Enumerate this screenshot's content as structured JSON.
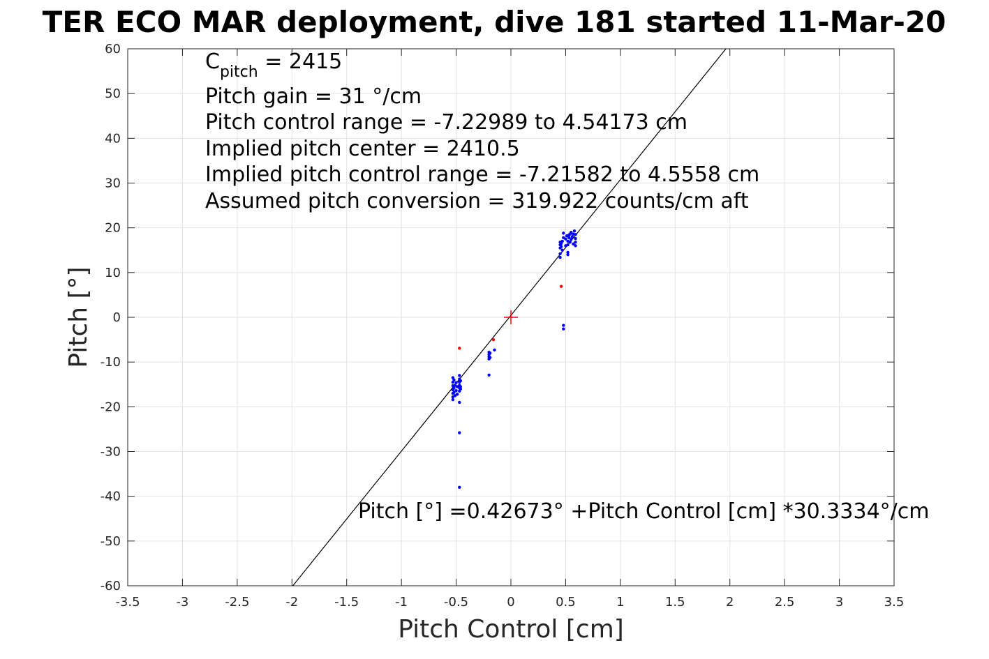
{
  "chart_data": {
    "type": "scatter",
    "title": "TER ECO MAR deployment, dive 181 started 11-Mar-20",
    "xlabel": "Pitch Control [cm]",
    "ylabel": "Pitch [°]",
    "xlim": [
      -3.5,
      3.5
    ],
    "ylim": [
      -60,
      60
    ],
    "xticks": [
      -3.5,
      -3,
      -2.5,
      -2,
      -1.5,
      -1,
      -0.5,
      0,
      0.5,
      1,
      1.5,
      2,
      2.5,
      3,
      3.5
    ],
    "yticks": [
      -60,
      -50,
      -40,
      -30,
      -20,
      -10,
      0,
      10,
      20,
      30,
      40,
      50,
      60
    ],
    "xtick_labels": [
      "-3.5",
      "-3",
      "-2.5",
      "-2",
      "-1.5",
      "-1",
      "-0.5",
      "0",
      "0.5",
      "1",
      "1.5",
      "2",
      "2.5",
      "3",
      "3.5"
    ],
    "ytick_labels": [
      "-60",
      "-50",
      "-40",
      "-30",
      "-20",
      "-10",
      "0",
      "10",
      "20",
      "30",
      "40",
      "50",
      "60"
    ],
    "grid": true,
    "annotations": {
      "c_pitch_prefix": "C",
      "c_pitch_sub": "pitch",
      "c_pitch_value": " = 2415",
      "lines": [
        "Pitch gain = 31 °/cm",
        "Pitch control range = -7.22989 to 4.54173 cm",
        "Implied pitch center = 2410.5",
        "Implied pitch control range = -7.21582 to 4.5558 cm",
        "Assumed pitch conversion = 319.922 counts/cm aft"
      ],
      "fit_equation": "Pitch [°] =0.42673° +Pitch Control [cm] *30.3334°/cm"
    },
    "fit_line": {
      "intercept": 0.42673,
      "slope": 30.3334,
      "color": "#000000"
    },
    "center_marker": {
      "x": 0,
      "y": 0,
      "color": "#ff0000"
    },
    "series": [
      {
        "color": "#0000ff",
        "points": [
          [
            -0.53,
            -13.5
          ],
          [
            -0.53,
            -14.5
          ],
          [
            -0.53,
            -15.3
          ],
          [
            -0.53,
            -16.2
          ],
          [
            -0.53,
            -17.0
          ],
          [
            -0.53,
            -17.8
          ],
          [
            -0.53,
            -18.4
          ],
          [
            -0.52,
            -14.0
          ],
          [
            -0.52,
            -15.8
          ],
          [
            -0.52,
            -16.8
          ],
          [
            -0.51,
            -15.2
          ],
          [
            -0.51,
            -17.5
          ],
          [
            -0.5,
            -14.6
          ],
          [
            -0.5,
            -16.4
          ],
          [
            -0.49,
            -15.5
          ],
          [
            -0.49,
            -17.2
          ],
          [
            -0.47,
            -13.0
          ],
          [
            -0.47,
            -13.8
          ],
          [
            -0.47,
            -14.5
          ],
          [
            -0.47,
            -15.2
          ],
          [
            -0.47,
            -15.8
          ],
          [
            -0.47,
            -16.5
          ],
          [
            -0.46,
            -14.2
          ],
          [
            -0.46,
            -15.5
          ],
          [
            -0.46,
            -16.0
          ],
          [
            -0.47,
            -19.0
          ],
          [
            -0.47,
            -25.8
          ],
          [
            -0.47,
            -38.0
          ],
          [
            -0.2,
            -7.8
          ],
          [
            -0.2,
            -8.3
          ],
          [
            -0.2,
            -8.8
          ],
          [
            -0.2,
            -9.3
          ],
          [
            -0.19,
            -8.0
          ],
          [
            -0.19,
            -9.0
          ],
          [
            -0.2,
            -12.9
          ],
          [
            -0.15,
            -7.3
          ],
          [
            0.45,
            13.4
          ],
          [
            0.45,
            14.2
          ],
          [
            0.45,
            15.5
          ],
          [
            0.45,
            16.2
          ],
          [
            0.45,
            16.8
          ],
          [
            0.46,
            15.8
          ],
          [
            0.46,
            16.5
          ],
          [
            0.47,
            15.0
          ],
          [
            0.47,
            17.0
          ],
          [
            0.48,
            17.8
          ],
          [
            0.48,
            18.8
          ],
          [
            0.48,
            -1.8
          ],
          [
            0.48,
            -2.6
          ],
          [
            0.5,
            16.0
          ],
          [
            0.5,
            17.5
          ],
          [
            0.51,
            18.2
          ],
          [
            0.52,
            14.0
          ],
          [
            0.52,
            14.5
          ],
          [
            0.52,
            16.2
          ],
          [
            0.52,
            17.0
          ],
          [
            0.53,
            17.8
          ],
          [
            0.53,
            18.4
          ],
          [
            0.54,
            16.8
          ],
          [
            0.54,
            18.6
          ],
          [
            0.55,
            17.4
          ],
          [
            0.55,
            19.0
          ],
          [
            0.56,
            18.0
          ],
          [
            0.57,
            16.4
          ],
          [
            0.57,
            18.6
          ],
          [
            0.58,
            19.3
          ],
          [
            0.59,
            16.0
          ],
          [
            0.59,
            16.8
          ],
          [
            0.59,
            17.6
          ],
          [
            0.59,
            18.5
          ]
        ]
      },
      {
        "color": "#ff0000",
        "points": [
          [
            -0.47,
            -6.9
          ],
          [
            -0.16,
            -5.0
          ],
          [
            0.46,
            6.9
          ]
        ]
      }
    ]
  }
}
